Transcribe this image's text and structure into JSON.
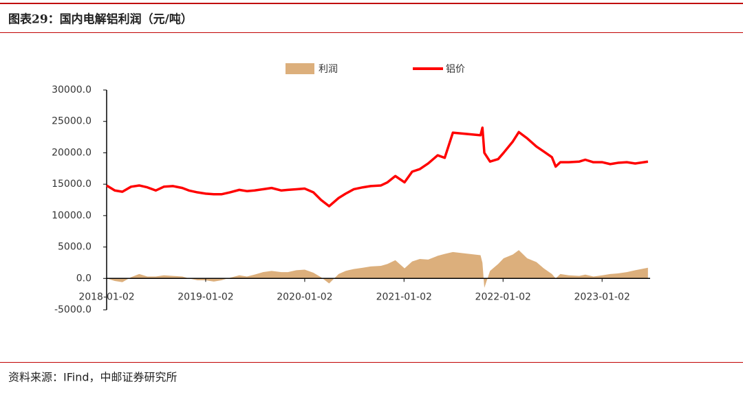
{
  "chart_data": {
    "type": "line",
    "title": "图表29：国内电解铝利润（元/吨）",
    "source": "资料来源：IFind，中邮证券研究所",
    "x": [
      "2018-01-02",
      "2018-02-01",
      "2018-03-01",
      "2018-04-02",
      "2018-05-02",
      "2018-06-01",
      "2018-07-02",
      "2018-08-01",
      "2018-09-03",
      "2018-10-08",
      "2018-11-01",
      "2018-12-03",
      "2019-01-02",
      "2019-02-01",
      "2019-03-01",
      "2019-04-01",
      "2019-05-06",
      "2019-06-03",
      "2019-07-01",
      "2019-08-01",
      "2019-09-02",
      "2019-10-08",
      "2019-11-01",
      "2019-12-02",
      "2020-01-02",
      "2020-02-03",
      "2020-03-02",
      "2020-04-01",
      "2020-05-06",
      "2020-06-01",
      "2020-07-01",
      "2020-08-03",
      "2020-09-01",
      "2020-10-09",
      "2020-11-02",
      "2020-12-01",
      "2021-01-04",
      "2021-02-01",
      "2021-03-01",
      "2021-04-01",
      "2021-05-06",
      "2021-06-01",
      "2021-07-01",
      "2021-10-11",
      "2021-10-18",
      "2021-10-25",
      "2021-11-15",
      "2021-12-15",
      "2022-01-04",
      "2022-02-07",
      "2022-03-01",
      "2022-04-01",
      "2022-05-05",
      "2022-06-01",
      "2022-07-01",
      "2022-07-15",
      "2022-08-01",
      "2022-09-01",
      "2022-10-10",
      "2022-11-01",
      "2022-12-01",
      "2023-01-03",
      "2023-02-01",
      "2023-03-01",
      "2023-04-03",
      "2023-05-04",
      "2023-06-20"
    ],
    "series": [
      {
        "name": "利润",
        "kind": "area",
        "color": "#dcaf7c",
        "values": [
          0,
          -400,
          -600,
          200,
          700,
          300,
          300,
          500,
          400,
          300,
          0,
          -300,
          -300,
          -500,
          -300,
          100,
          500,
          300,
          600,
          1000,
          1200,
          1000,
          1000,
          1300,
          1400,
          900,
          200,
          -800,
          700,
          1200,
          1500,
          1700,
          1900,
          2000,
          2300,
          2900,
          1600,
          2700,
          3100,
          3000,
          3600,
          3900,
          4200,
          3700,
          2500,
          -1500,
          1200,
          2300,
          3200,
          3800,
          4500,
          3200,
          2600,
          1600,
          700,
          0,
          700,
          500,
          400,
          600,
          300,
          500,
          700,
          800,
          1000,
          1300,
          1700
        ]
      },
      {
        "name": "铝价",
        "kind": "line",
        "color": "#ff0000",
        "values": [
          14800,
          14000,
          13800,
          14600,
          14800,
          14500,
          14000,
          14600,
          14700,
          14400,
          14000,
          13700,
          13500,
          13400,
          13400,
          13700,
          14100,
          13900,
          14000,
          14200,
          14400,
          14000,
          14100,
          14200,
          14300,
          13700,
          12500,
          11500,
          12800,
          13500,
          14200,
          14500,
          14700,
          14800,
          15300,
          16300,
          15300,
          17000,
          17400,
          18300,
          19600,
          19200,
          23200,
          22800,
          24000,
          20000,
          18600,
          19000,
          20000,
          21800,
          23300,
          22300,
          21000,
          20200,
          19300,
          17800,
          18500,
          18500,
          18600,
          18900,
          18500,
          18500,
          18200,
          18400,
          18500,
          18300,
          18600
        ]
      }
    ],
    "xlim": [
      "2018-01-02",
      "2023-06-28"
    ],
    "xticks": [
      "2018-01-02",
      "2019-01-02",
      "2020-01-02",
      "2021-01-02",
      "2022-01-02",
      "2023-01-02"
    ],
    "ylim": [
      -5000,
      30000
    ],
    "yticks": [
      {
        "value": -5000,
        "label": "-5000.0"
      },
      {
        "value": 0,
        "label": "0.0"
      },
      {
        "value": 5000,
        "label": "5000.0"
      },
      {
        "value": 10000,
        "label": "10000.0"
      },
      {
        "value": 15000,
        "label": "15000.0"
      },
      {
        "value": 20000,
        "label": "20000.0"
      },
      {
        "value": 25000,
        "label": "25000.0"
      },
      {
        "value": 30000,
        "label": "30000.0"
      }
    ],
    "grid": false,
    "legend": "top"
  }
}
